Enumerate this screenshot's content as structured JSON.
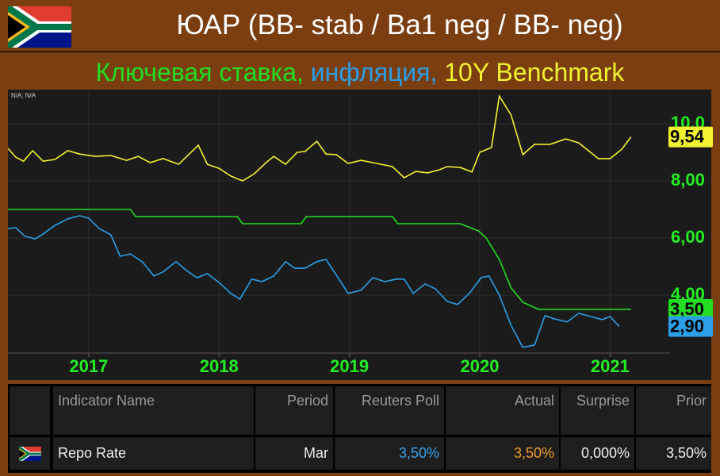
{
  "header": {
    "title": "ЮАР (BB- stab / Ba1 neg / BB- neg)"
  },
  "chart_data": {
    "type": "line",
    "annotation": "N/A; N/A",
    "xlim": [
      2016.38,
      2021.46
    ],
    "xticks": [
      2017,
      2018,
      2019,
      2020,
      2021
    ],
    "ylim": [
      1.97,
      11.14
    ],
    "yticks": [
      {
        "value": 10,
        "label": "10,0"
      },
      {
        "value": 8,
        "label": "8,00"
      },
      {
        "value": 6,
        "label": "6,00"
      },
      {
        "value": 4,
        "label": "4,00"
      }
    ],
    "grid": true,
    "series": [
      {
        "name": "Ключевая ставка,",
        "color": "#22dd22",
        "last_value_label": "3,50",
        "x": [
          2016.38,
          2017.32,
          2017.36,
          2018.14,
          2018.18,
          2018.63,
          2018.67,
          2019.33,
          2019.37,
          2019.85,
          2019.99,
          2020.05,
          2020.15,
          2020.24,
          2020.33,
          2020.45,
          2021.16
        ],
        "values": [
          7,
          7,
          6.75,
          6.75,
          6.5,
          6.5,
          6.75,
          6.75,
          6.5,
          6.5,
          6.25,
          6.0,
          5.25,
          4.25,
          3.75,
          3.5,
          3.5
        ]
      },
      {
        "name": "инфляция,",
        "color": "#2a9fe8",
        "last_value_label": "2,90",
        "x": [
          2016.38,
          2016.44,
          2016.51,
          2016.59,
          2016.65,
          2016.74,
          2016.84,
          2016.93,
          2017.0,
          2017.08,
          2017.17,
          2017.24,
          2017.32,
          2017.41,
          2017.5,
          2017.57,
          2017.67,
          2017.75,
          2017.83,
          2017.91,
          2018.0,
          2018.09,
          2018.16,
          2018.25,
          2018.33,
          2018.42,
          2018.51,
          2018.58,
          2018.66,
          2018.75,
          2018.82,
          2018.92,
          2018.99,
          2019.09,
          2019.18,
          2019.27,
          2019.36,
          2019.42,
          2019.49,
          2019.58,
          2019.66,
          2019.75,
          2019.83,
          2019.92,
          2020.01,
          2020.07,
          2020.15,
          2020.24,
          2020.33,
          2020.42,
          2020.5,
          2020.57,
          2020.67,
          2020.76,
          2020.85,
          2020.94,
          2021.0,
          2021.07
        ],
        "values": [
          6.33,
          6.36,
          6.06,
          5.97,
          6.14,
          6.44,
          6.67,
          6.78,
          6.69,
          6.33,
          6.11,
          5.36,
          5.44,
          5.17,
          4.67,
          4.81,
          5.17,
          4.86,
          4.61,
          4.75,
          4.44,
          4.06,
          3.86,
          4.56,
          4.47,
          4.67,
          5.17,
          4.94,
          4.94,
          5.17,
          5.25,
          4.56,
          4.06,
          4.17,
          4.61,
          4.47,
          4.56,
          4.56,
          4.06,
          4.39,
          4.22,
          3.78,
          3.67,
          4.06,
          4.61,
          4.67,
          4.0,
          2.94,
          2.17,
          2.25,
          3.28,
          3.17,
          3.06,
          3.36,
          3.25,
          3.14,
          3.25,
          2.9
        ]
      },
      {
        "name": "10Y Benchmark",
        "color": "#f2f230",
        "last_value_label": "9,54",
        "x": [
          2016.38,
          2016.44,
          2016.5,
          2016.57,
          2016.65,
          2016.74,
          2016.84,
          2016.93,
          2017.05,
          2017.17,
          2017.29,
          2017.38,
          2017.47,
          2017.57,
          2017.69,
          2017.81,
          2017.84,
          2017.91,
          2018.0,
          2018.09,
          2018.18,
          2018.27,
          2018.36,
          2018.42,
          2018.51,
          2018.6,
          2018.66,
          2018.75,
          2018.82,
          2018.9,
          2018.99,
          2019.09,
          2019.18,
          2019.33,
          2019.42,
          2019.51,
          2019.6,
          2019.69,
          2019.75,
          2019.85,
          2019.94,
          2020.0,
          2020.09,
          2020.15,
          2020.24,
          2020.33,
          2020.42,
          2020.54,
          2020.66,
          2020.76,
          2020.85,
          2020.91,
          2021.0,
          2021.09,
          2021.16
        ],
        "values": [
          9.14,
          8.83,
          8.69,
          9.06,
          8.69,
          8.75,
          9.06,
          8.94,
          8.86,
          8.89,
          8.72,
          8.86,
          8.64,
          8.78,
          8.58,
          9.11,
          9.25,
          8.58,
          8.44,
          8.17,
          8.0,
          8.25,
          8.64,
          8.86,
          8.58,
          9.0,
          9.03,
          9.39,
          8.94,
          8.92,
          8.61,
          8.72,
          8.64,
          8.5,
          8.11,
          8.33,
          8.28,
          8.39,
          8.5,
          8.47,
          8.31,
          9.0,
          9.17,
          10.97,
          10.31,
          8.92,
          9.28,
          9.28,
          9.47,
          9.33,
          9.0,
          8.78,
          8.78,
          9.11,
          9.54
        ]
      }
    ]
  },
  "table": {
    "headers": [
      "Indicator Name",
      "Period",
      "Reuters Poll",
      "Actual",
      "Surprise",
      "Prior"
    ],
    "rows": [
      [
        "Repo Rate",
        "Mar",
        "3,50%",
        "3,50%",
        "0,000%",
        "3,50%"
      ]
    ]
  }
}
